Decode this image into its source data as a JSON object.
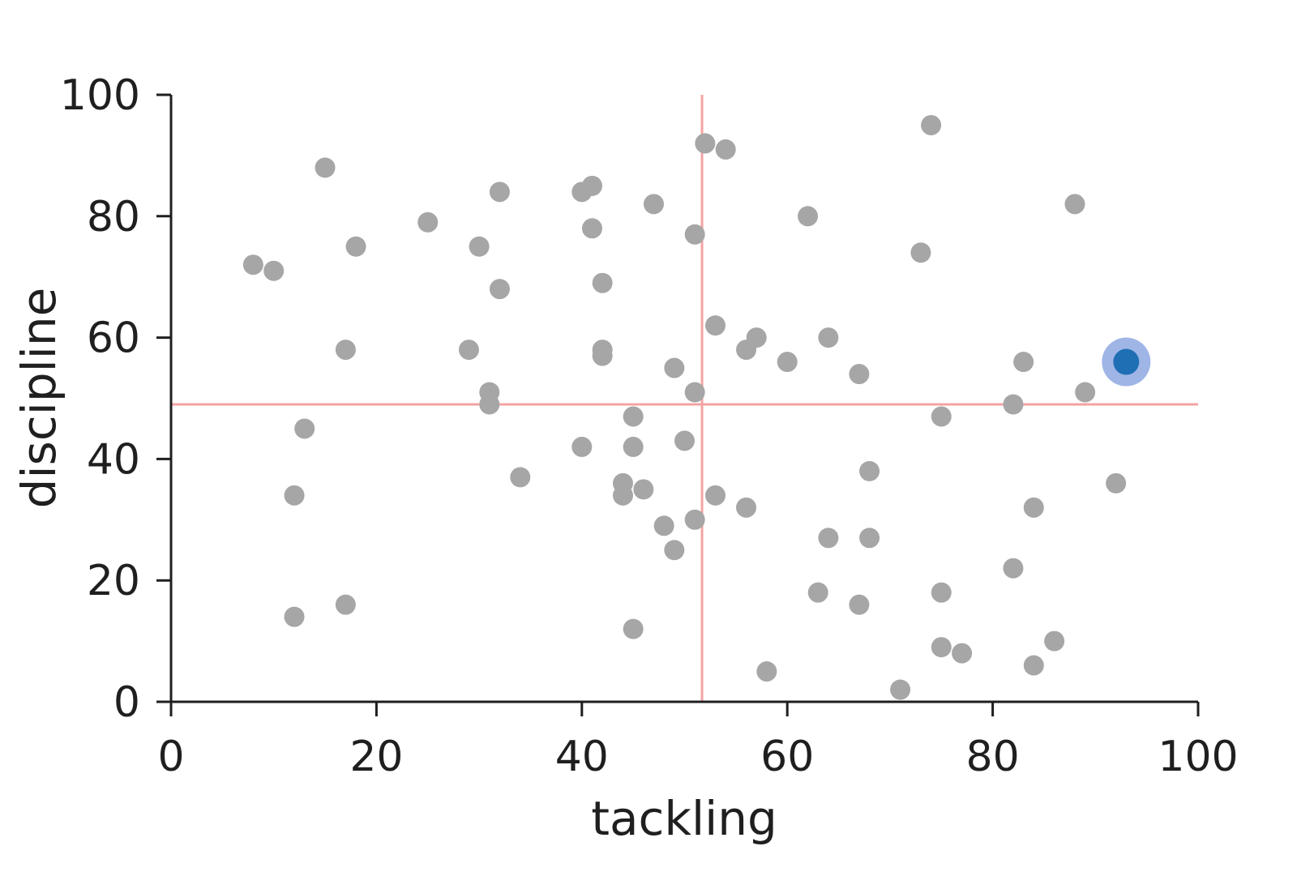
{
  "chart_data": {
    "type": "scatter",
    "xlabel": "tackling",
    "ylabel": "discipline",
    "xlim": [
      0,
      100
    ],
    "ylim": [
      0,
      100
    ],
    "xticks": [
      0,
      20,
      40,
      60,
      80,
      100
    ],
    "yticks": [
      0,
      20,
      40,
      60,
      80,
      100
    ],
    "grid": false,
    "reference_lines": {
      "x": 51.7,
      "y": 49,
      "color": "#f4a3a3"
    },
    "point_color": "#a6a6a6",
    "highlight_color": "#1f6fb5",
    "highlight_halo_color": "#9fb5e6",
    "points": [
      [
        74,
        95
      ],
      [
        52,
        92
      ],
      [
        54,
        91
      ],
      [
        15,
        88
      ],
      [
        41,
        85
      ],
      [
        40,
        84
      ],
      [
        32,
        84
      ],
      [
        47,
        82
      ],
      [
        88,
        82
      ],
      [
        62,
        80
      ],
      [
        25,
        79
      ],
      [
        41,
        78
      ],
      [
        51,
        77
      ],
      [
        18,
        75
      ],
      [
        30,
        75
      ],
      [
        73,
        74
      ],
      [
        8,
        72
      ],
      [
        10,
        71
      ],
      [
        42,
        69
      ],
      [
        32,
        68
      ],
      [
        53,
        62
      ],
      [
        57,
        60
      ],
      [
        64,
        60
      ],
      [
        17,
        58
      ],
      [
        29,
        58
      ],
      [
        42,
        58
      ],
      [
        56,
        58
      ],
      [
        42,
        57
      ],
      [
        60,
        56
      ],
      [
        83,
        56
      ],
      [
        49,
        55
      ],
      [
        67,
        54
      ],
      [
        31,
        51
      ],
      [
        51,
        51
      ],
      [
        89,
        51
      ],
      [
        31,
        49
      ],
      [
        82,
        49
      ],
      [
        45,
        47
      ],
      [
        75,
        47
      ],
      [
        13,
        45
      ],
      [
        50,
        43
      ],
      [
        40,
        42
      ],
      [
        45,
        42
      ],
      [
        68,
        38
      ],
      [
        34,
        37
      ],
      [
        44,
        36
      ],
      [
        92,
        36
      ],
      [
        46,
        35
      ],
      [
        12,
        34
      ],
      [
        44,
        34
      ],
      [
        53,
        34
      ],
      [
        56,
        32
      ],
      [
        84,
        32
      ],
      [
        51,
        30
      ],
      [
        48,
        29
      ],
      [
        64,
        27
      ],
      [
        68,
        27
      ],
      [
        49,
        25
      ],
      [
        82,
        22
      ],
      [
        63,
        18
      ],
      [
        75,
        18
      ],
      [
        17,
        16
      ],
      [
        67,
        16
      ],
      [
        12,
        14
      ],
      [
        45,
        12
      ],
      [
        86,
        10
      ],
      [
        75,
        9
      ],
      [
        77,
        8
      ],
      [
        84,
        6
      ],
      [
        58,
        5
      ],
      [
        71,
        2
      ]
    ],
    "highlighted": [
      93,
      56
    ]
  }
}
